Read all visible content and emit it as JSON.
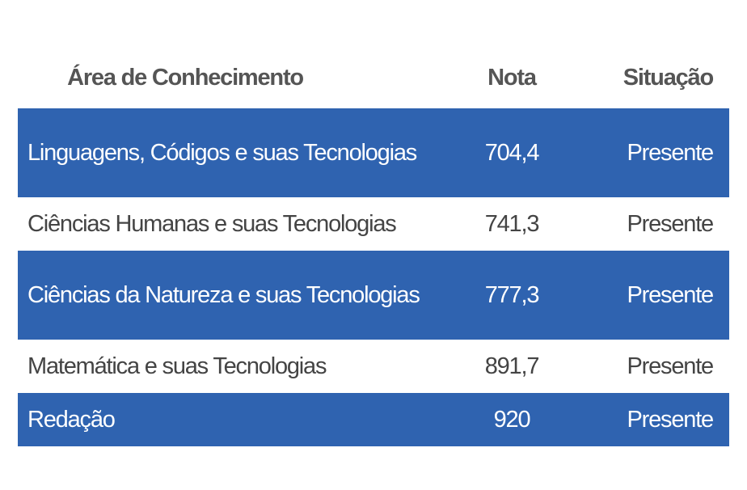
{
  "table": {
    "header": [
      "Área de Conhecimento",
      "Nota",
      "Situação"
    ],
    "rows": [
      [
        "Linguagens, Códigos e suas Tecnologias",
        "704,4",
        "Presente"
      ],
      [
        "Ciências Humanas e suas Tecnologias",
        "741,3",
        "Presente"
      ],
      [
        "Ciências da Natureza e suas Tecnologias",
        "777,3",
        "Presente"
      ],
      [
        "Matemática e suas Tecnologias",
        "891,7",
        "Presente"
      ],
      [
        "Redação",
        "920",
        "Presente"
      ]
    ]
  }
}
